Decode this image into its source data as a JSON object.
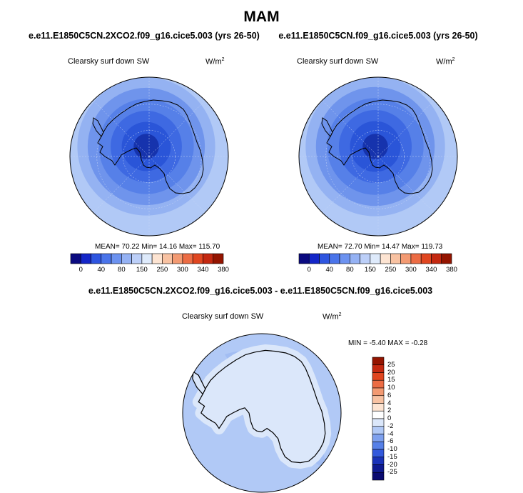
{
  "page": {
    "title": "MAM"
  },
  "chart_data": [
    {
      "type": "heatmap",
      "projection": "south-polar-stereographic",
      "title": "e.e11.E1850C5CN.2XCO2.f09_g16.cice5.003 (yrs 26-50)",
      "variable": "Clearsky surf down SW",
      "units_base": "W/m",
      "units_exp": "2",
      "stats_text": "MEAN=  70.22  Min=  14.16  Max= 115.70",
      "mean": 70.22,
      "min": 14.16,
      "max": 115.7,
      "colorbar": {
        "orientation": "horizontal",
        "levels": [
          "0",
          "40",
          "80",
          "150",
          "250",
          "300",
          "340",
          "380"
        ],
        "colors": [
          "#0a0a80",
          "#1426c8",
          "#2e55e0",
          "#4a74ea",
          "#6c92f0",
          "#95b2f4",
          "#bccff8",
          "#deeafb",
          "#fde4d2",
          "#f8c2a2",
          "#f39a72",
          "#ec6c44",
          "#e04620",
          "#c42810",
          "#941400"
        ]
      },
      "rings": [
        {
          "radius_frac": 1.0,
          "color": "#b1c9f6"
        },
        {
          "radius_frac": 0.87,
          "color": "#94b2f2"
        },
        {
          "radius_frac": 0.74,
          "color": "#6f94ec"
        },
        {
          "radius_frac": 0.6,
          "color": "#5680e8"
        },
        {
          "radius_frac": 0.45,
          "color": "#3e69e2"
        },
        {
          "radius_frac": 0.31,
          "color": "#2a55d8"
        },
        {
          "radius_frac": 0.16,
          "color": "#1633ad"
        }
      ]
    },
    {
      "type": "heatmap",
      "projection": "south-polar-stereographic",
      "title": "e.e11.E1850C5CN.f09_g16.cice5.003 (yrs 26-50)",
      "variable": "Clearsky surf down SW",
      "units_base": "W/m",
      "units_exp": "2",
      "stats_text": "MEAN=  72.70  Min=  14.47  Max= 119.73",
      "mean": 72.7,
      "min": 14.47,
      "max": 119.73,
      "colorbar": {
        "orientation": "horizontal",
        "levels": [
          "0",
          "40",
          "80",
          "150",
          "250",
          "300",
          "340",
          "380"
        ],
        "colors": [
          "#0a0a80",
          "#1426c8",
          "#2e55e0",
          "#4a74ea",
          "#6c92f0",
          "#95b2f4",
          "#bccff8",
          "#deeafb",
          "#fde4d2",
          "#f8c2a2",
          "#f39a72",
          "#ec6c44",
          "#e04620",
          "#c42810",
          "#941400"
        ]
      },
      "rings": [
        {
          "radius_frac": 1.0,
          "color": "#b1c9f6"
        },
        {
          "radius_frac": 0.88,
          "color": "#94b2f2"
        },
        {
          "radius_frac": 0.75,
          "color": "#6f94ec"
        },
        {
          "radius_frac": 0.61,
          "color": "#5680e8"
        },
        {
          "radius_frac": 0.46,
          "color": "#3e69e2"
        },
        {
          "radius_frac": 0.32,
          "color": "#2a55d8"
        },
        {
          "radius_frac": 0.16,
          "color": "#1633ad"
        }
      ]
    },
    {
      "type": "heatmap",
      "projection": "south-polar-stereographic",
      "title": "e.e11.E1850C5CN.2XCO2.f09_g16.cice5.003 - e.e11.E1850C5CN.f09_g16.cice5.003",
      "variable": "Clearsky surf down SW",
      "units_base": "W/m",
      "units_exp": "2",
      "stats_text": "MIN =  -5.40 MAX =  -0.28",
      "min": -5.4,
      "max": -0.28,
      "colorbar": {
        "orientation": "vertical",
        "levels_top_to_bottom": [
          "25",
          "20",
          "15",
          "10",
          "6",
          "4",
          "2",
          "0",
          "-2",
          "-4",
          "-6",
          "-10",
          "-15",
          "-20",
          "-25"
        ],
        "colors_top_to_bottom": [
          "#941400",
          "#c42810",
          "#e04620",
          "#ec6c44",
          "#f39a72",
          "#f8c2a2",
          "#fde4d2",
          "#ffffff",
          "#dbe7fa",
          "#b1c9f6",
          "#7ea0ee",
          "#5680e8",
          "#3359dc",
          "#1a32b8",
          "#0f1a90",
          "#0a0a70"
        ]
      },
      "background_color": "#b1c9f6",
      "land_color": "#dbe7fa"
    }
  ]
}
